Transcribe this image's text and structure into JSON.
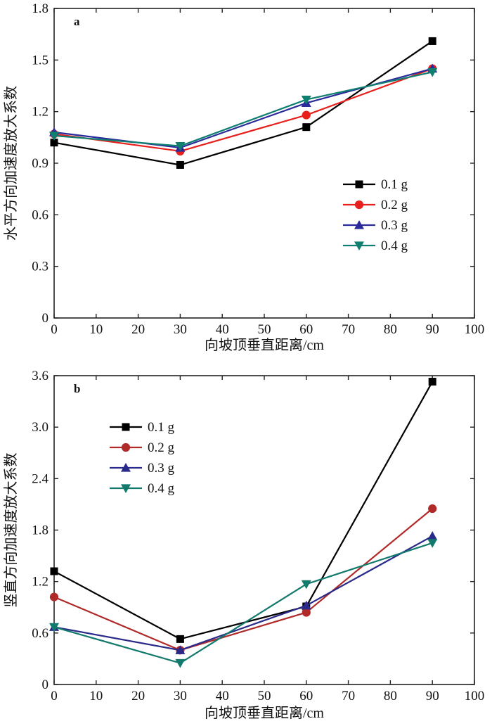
{
  "chart_data": [
    {
      "type": "line",
      "panel_label": "a",
      "xlabel": "向坡顶垂直距离/cm",
      "ylabel": "水平方向加速度放大系数",
      "xlim": [
        0,
        100
      ],
      "ylim": [
        0,
        1.8
      ],
      "xticks": [
        0,
        10,
        20,
        30,
        40,
        50,
        60,
        70,
        80,
        90,
        100
      ],
      "yticks": [
        "0",
        "0.3",
        "0.6",
        "0.9",
        "1.2",
        "1.5",
        "1.8"
      ],
      "legend_position": "middle-right",
      "x": [
        0,
        30,
        60,
        90
      ],
      "series": [
        {
          "name": "0.1 g",
          "values": [
            1.02,
            0.89,
            1.11,
            1.61
          ],
          "color": "#000000",
          "marker": "square"
        },
        {
          "name": "0.2 g",
          "values": [
            1.07,
            0.97,
            1.18,
            1.45
          ],
          "color": "#e8201c",
          "marker": "circle"
        },
        {
          "name": "0.3 g",
          "values": [
            1.08,
            0.99,
            1.25,
            1.45
          ],
          "color": "#2a2a9a",
          "marker": "triangle-up"
        },
        {
          "name": "0.4 g",
          "values": [
            1.06,
            1.0,
            1.27,
            1.43
          ],
          "color": "#0f7f6f",
          "marker": "triangle-down"
        }
      ]
    },
    {
      "type": "line",
      "panel_label": "b",
      "xlabel": "向坡顶垂直距离/cm",
      "ylabel": "竖直方向加速度放大系数",
      "xlim": [
        0,
        100
      ],
      "ylim": [
        0,
        3.6
      ],
      "xticks": [
        0,
        10,
        20,
        30,
        40,
        50,
        60,
        70,
        80,
        90,
        100
      ],
      "yticks": [
        "0",
        "0.6",
        "1.2",
        "1.8",
        "2.4",
        "3.0",
        "3.6"
      ],
      "legend_position": "top-left",
      "x": [
        0,
        30,
        60,
        90
      ],
      "series": [
        {
          "name": "0.1 g",
          "values": [
            1.32,
            0.53,
            0.91,
            3.53
          ],
          "color": "#000000",
          "marker": "square"
        },
        {
          "name": "0.2 g",
          "values": [
            1.02,
            0.4,
            0.84,
            2.05
          ],
          "color": "#b02a2a",
          "marker": "circle"
        },
        {
          "name": "0.3 g",
          "values": [
            0.67,
            0.4,
            0.92,
            1.73
          ],
          "color": "#2a2a8a",
          "marker": "triangle-up"
        },
        {
          "name": "0.4 g",
          "values": [
            0.67,
            0.25,
            1.17,
            1.65
          ],
          "color": "#127a6c",
          "marker": "triangle-down"
        }
      ]
    }
  ]
}
